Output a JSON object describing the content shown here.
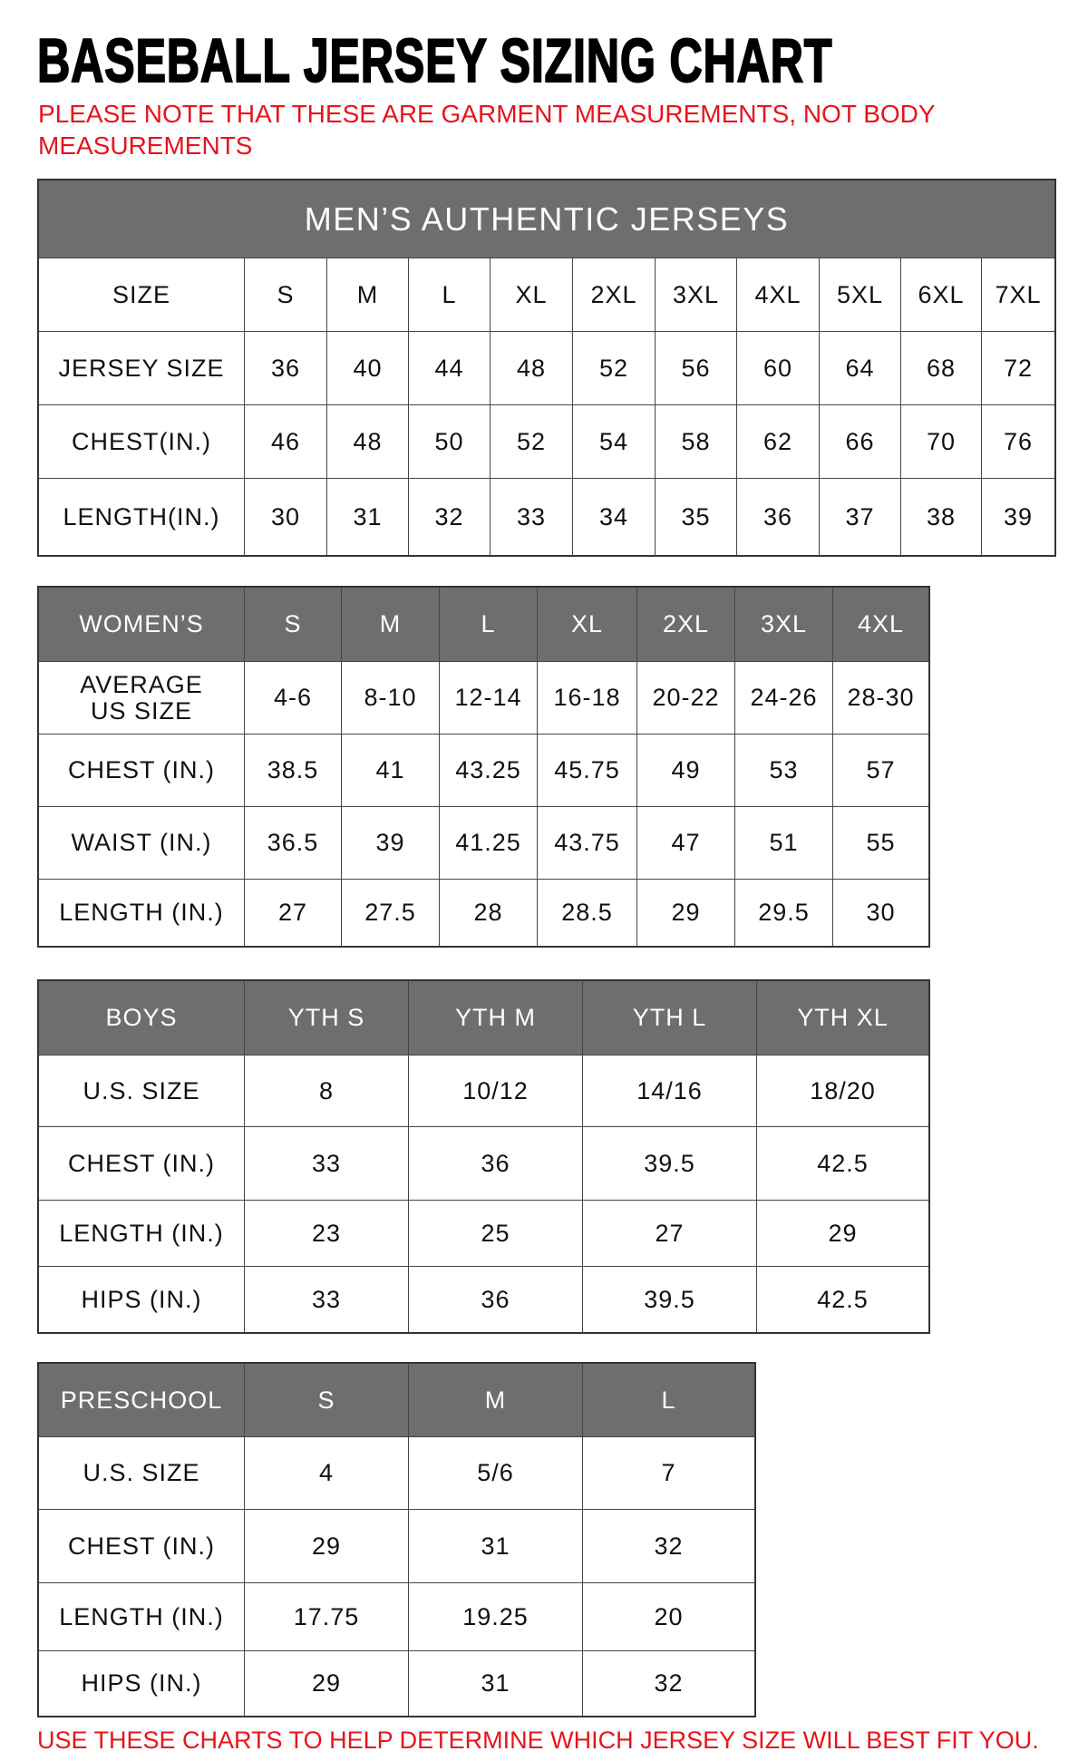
{
  "title": "BASEBALL JERSEY SIZING CHART",
  "note": "PLEASE NOTE THAT THESE ARE GARMENT MEASUREMENTS, NOT BODY MEASUREMENTS",
  "footer": "USE THESE CHARTS TO HELP DETERMINE WHICH JERSEY SIZE WILL BEST FIT YOU.",
  "colors": {
    "header_bg": "#6e6e6e",
    "note_red": "#e8141b",
    "border": "#333333"
  },
  "tables": [
    {
      "banner": "MEN’S AUTHENTIC JERSEYS",
      "header_style": "plain",
      "header": [
        "SIZE",
        "S",
        "M",
        "L",
        "XL",
        "2XL",
        "3XL",
        "4XL",
        "5XL",
        "6XL",
        "7XL"
      ],
      "rows": [
        [
          "JERSEY SIZE",
          "36",
          "40",
          "44",
          "48",
          "52",
          "56",
          "60",
          "64",
          "68",
          "72"
        ],
        [
          "CHEST(IN.)",
          "46",
          "48",
          "50",
          "52",
          "54",
          "58",
          "62",
          "66",
          "70",
          "76"
        ],
        [
          "LENGTH(IN.)",
          "30",
          "31",
          "32",
          "33",
          "34",
          "35",
          "36",
          "37",
          "38",
          "39"
        ]
      ]
    },
    {
      "header_style": "gray",
      "header": [
        "WOMEN’S",
        "S",
        "M",
        "L",
        "XL",
        "2XL",
        "3XL",
        "4XL"
      ],
      "rows": [
        [
          "AVERAGE\nUS SIZE",
          "4-6",
          "8-10",
          "12-14",
          "16-18",
          "20-22",
          "24-26",
          "28-30"
        ],
        [
          "CHEST (IN.)",
          "38.5",
          "41",
          "43.25",
          "45.75",
          "49",
          "53",
          "57"
        ],
        [
          "WAIST (IN.)",
          "36.5",
          "39",
          "41.25",
          "43.75",
          "47",
          "51",
          "55"
        ],
        [
          "LENGTH (IN.)",
          "27",
          "27.5",
          "28",
          "28.5",
          "29",
          "29.5",
          "30"
        ]
      ]
    },
    {
      "header_style": "gray",
      "header": [
        "BOYS",
        "YTH S",
        "YTH M",
        "YTH L",
        "YTH XL"
      ],
      "rows": [
        [
          "U.S. SIZE",
          "8",
          "10/12",
          "14/16",
          "18/20"
        ],
        [
          "CHEST (IN.)",
          "33",
          "36",
          "39.5",
          "42.5"
        ],
        [
          "LENGTH (IN.)",
          "23",
          "25",
          "27",
          "29"
        ],
        [
          "HIPS (IN.)",
          "33",
          "36",
          "39.5",
          "42.5"
        ]
      ]
    },
    {
      "header_style": "gray",
      "header": [
        "PRESCHOOL",
        "S",
        "M",
        "L"
      ],
      "rows": [
        [
          "U.S. SIZE",
          "4",
          "5/6",
          "7"
        ],
        [
          "CHEST (IN.)",
          "29",
          "31",
          "32"
        ],
        [
          "LENGTH (IN.)",
          "17.75",
          "19.25",
          "20"
        ],
        [
          "HIPS (IN.)",
          "29",
          "31",
          "32"
        ]
      ]
    }
  ]
}
